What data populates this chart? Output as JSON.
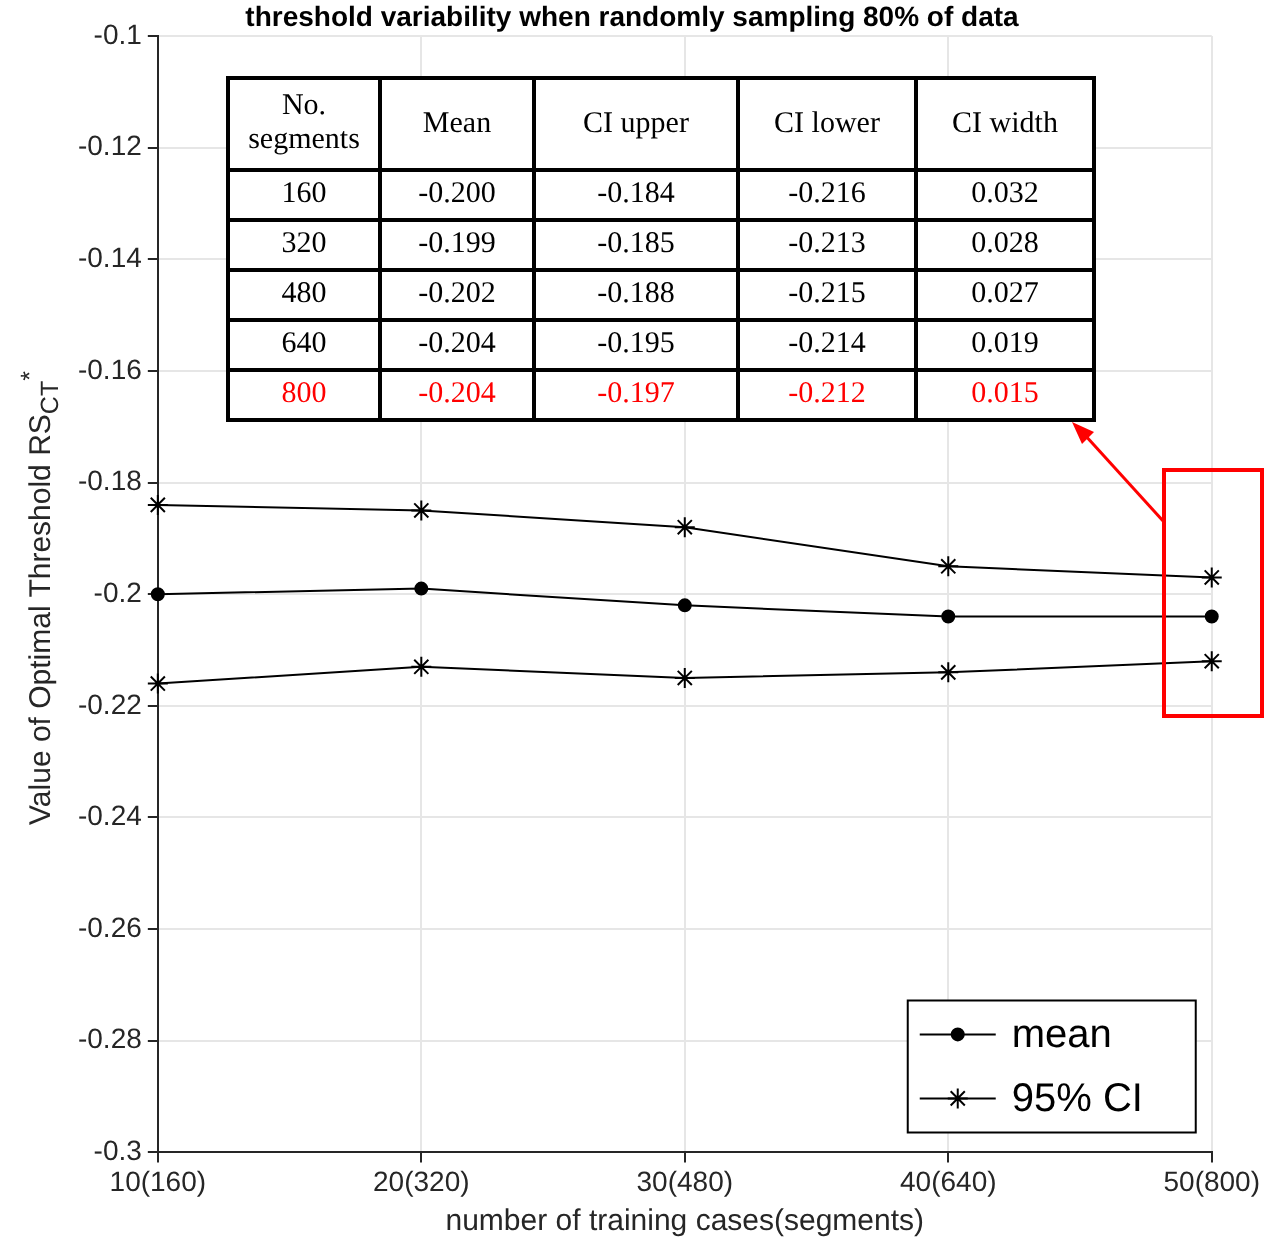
{
  "chart_data": {
    "type": "line",
    "title": "threshold variability when randomly sampling 80% of data",
    "xlabel": "number of training cases(segments)",
    "ylabel": "Value of Optimal Threshold RS$_{CT}$$^{*}$",
    "categories": [
      "10(160)",
      "20(320)",
      "30(480)",
      "40(640)",
      "50(800)"
    ],
    "series": [
      {
        "name": "mean",
        "color": "#000000",
        "marker": "circle",
        "values": [
          -0.2,
          -0.199,
          -0.202,
          -0.204,
          -0.204
        ]
      },
      {
        "name": "95% CI",
        "color": "#000000",
        "marker": "cross",
        "values": [
          -0.184,
          -0.185,
          -0.188,
          -0.195,
          -0.197
        ]
      },
      {
        "color": "#000000",
        "marker": "cross",
        "values": [
          -0.216,
          -0.213,
          -0.215,
          -0.214,
          -0.212
        ]
      }
    ],
    "annotations": [
      "No. segments",
      "Mean",
      "CI upper",
      "CI lower",
      "CI width",
      "160",
      "-0.200",
      "-0.184",
      "-0.216",
      "0.032",
      "320",
      "-0.199",
      "-0.185",
      "-0.213",
      "0.028",
      "480",
      "-0.202",
      "-0.188",
      "-0.215",
      "0.027",
      "640",
      "-0.204",
      "-0.195",
      "-0.214",
      "0.019",
      "800",
      "-0.204",
      "-0.197",
      "-0.212",
      "0.015"
    ],
    "ylim": [
      -0.3,
      -0.1
    ],
    "yticks": [
      -0.3,
      -0.28,
      -0.26,
      -0.24,
      -0.22,
      -0.2,
      -0.18,
      -0.16,
      -0.14,
      -0.12,
      -0.1
    ],
    "grid": true,
    "legend": "bottom right",
    "line_style": "solid"
  }
}
